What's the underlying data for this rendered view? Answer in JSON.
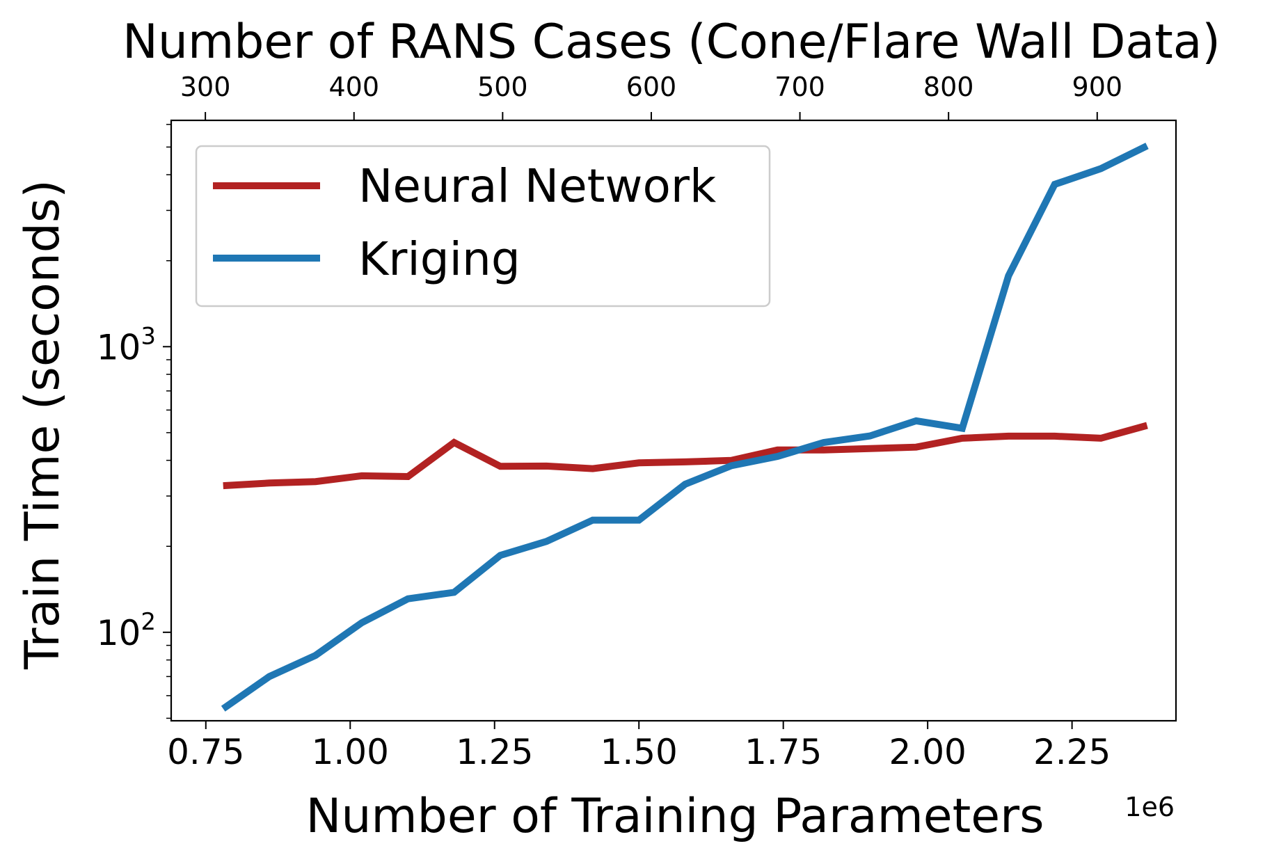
{
  "chart_data": {
    "type": "line",
    "title": "",
    "xlabel": "Number of Training Parameters",
    "x_offset_label": "1e6",
    "ylabel": "Train Time (seconds)",
    "top_xlabel": "Number of RANS Cases (Cone/Flare Wall Data)",
    "x_scale": "linear",
    "y_scale": "log",
    "xlim": [
      690000,
      2430000
    ],
    "ylim": [
      49,
      6200
    ],
    "top_xlim": [
      277,
      953
    ],
    "x_ticks": [
      750000,
      1000000,
      1250000,
      1500000,
      1750000,
      2000000,
      2250000
    ],
    "x_tick_labels": [
      "0.75",
      "1.00",
      "1.25",
      "1.50",
      "1.75",
      "2.00",
      "2.25"
    ],
    "top_x_ticks": [
      300,
      400,
      500,
      600,
      700,
      800,
      900
    ],
    "top_x_tick_labels": [
      "300",
      "400",
      "500",
      "600",
      "700",
      "800",
      "900"
    ],
    "y_ticks": [
      100,
      1000
    ],
    "y_tick_labels": [
      {
        "base": "10",
        "exp": "2"
      },
      {
        "base": "10",
        "exp": "3"
      }
    ],
    "grid": false,
    "legend_position": "upper-left",
    "x": [
      780000,
      860000,
      940000,
      1020000,
      1100000,
      1180000,
      1260000,
      1340000,
      1420000,
      1500000,
      1580000,
      1660000,
      1740000,
      1820000,
      1900000,
      1980000,
      2060000,
      2140000,
      2220000,
      2300000,
      2380000
    ],
    "series": [
      {
        "name": "Neural Network",
        "color": "#b22222",
        "values": [
          326,
          333,
          337,
          353,
          351,
          462,
          381,
          382,
          374,
          392,
          395,
          400,
          435,
          435,
          440,
          445,
          478,
          486,
          486,
          478,
          530
        ]
      },
      {
        "name": "Kriging",
        "color": "#1f77b4",
        "values": [
          54,
          70,
          83,
          108,
          131,
          138,
          186,
          208,
          247,
          247,
          330,
          383,
          413,
          462,
          487,
          550,
          518,
          1770,
          3700,
          4200,
          5050
        ]
      }
    ]
  }
}
